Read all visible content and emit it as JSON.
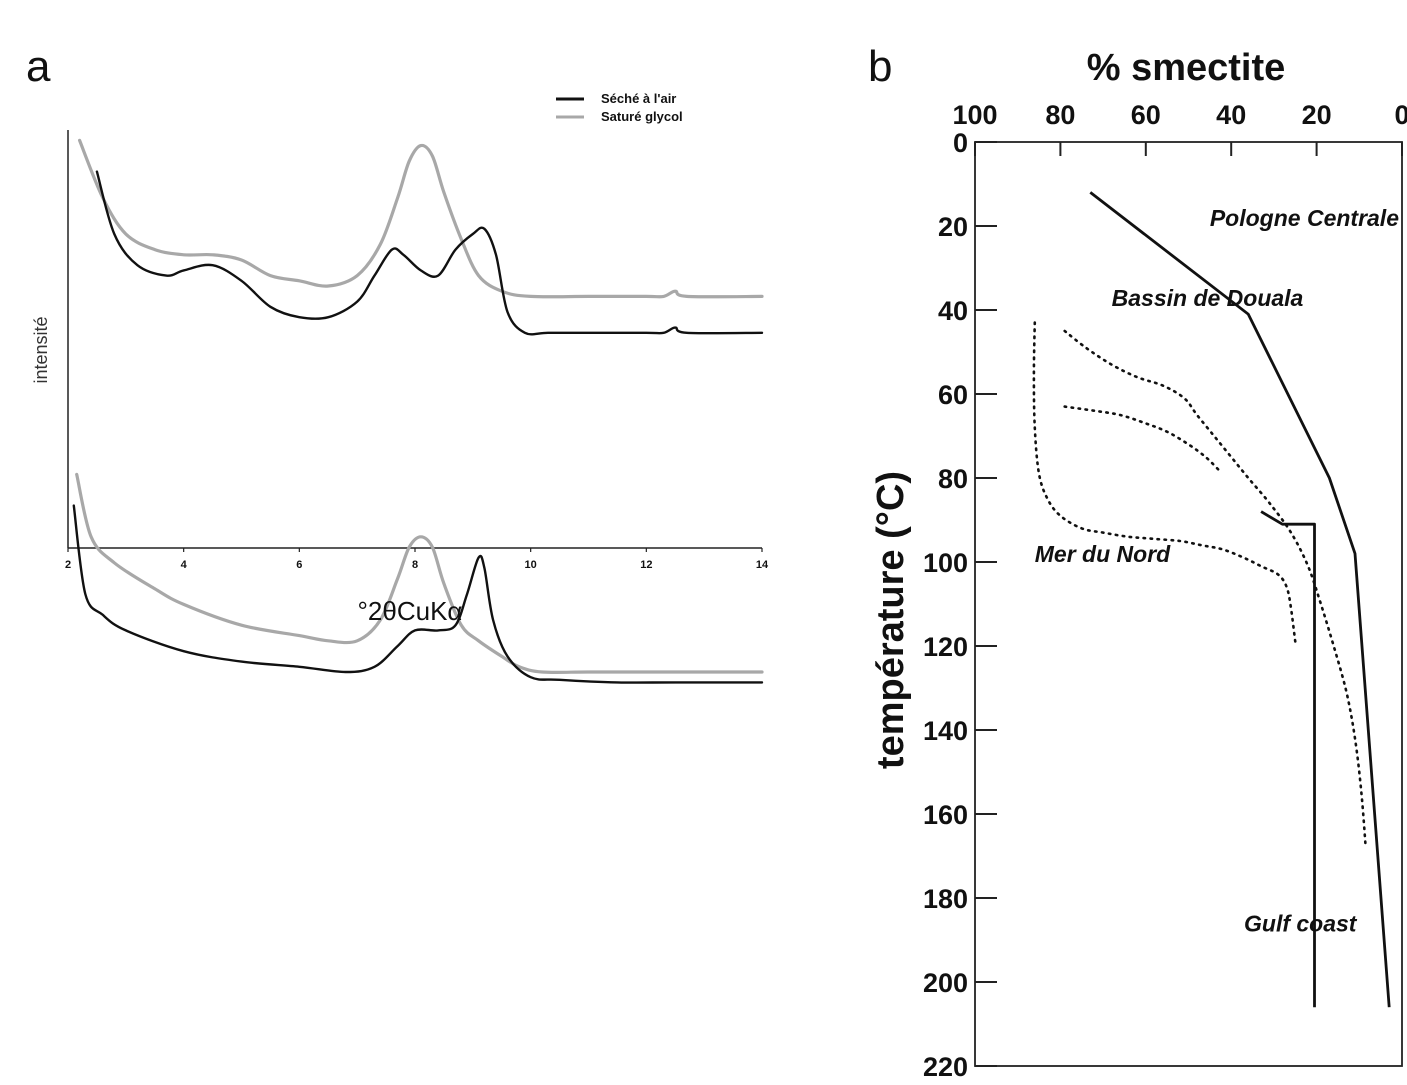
{
  "chart_data": [
    {
      "panel": "a",
      "type": "line",
      "xlabel": "°2θCuKα",
      "ylabel": "intensité",
      "xlim": [
        2,
        14
      ],
      "xticks": [
        2,
        4,
        6,
        8,
        10,
        12,
        14
      ],
      "legend": {
        "placement": "top-right",
        "entries": [
          {
            "label": "Séché à l'air",
            "color": "#111111"
          },
          {
            "label": "Saturé glycol",
            "color": "#a8a8a8"
          }
        ]
      },
      "series": [
        {
          "group": "upper",
          "legend": "Saturé glycol",
          "color": "#a8a8a8",
          "x": [
            2.2,
            2.6,
            3.0,
            3.5,
            4.0,
            4.5,
            5.0,
            5.5,
            6.0,
            6.5,
            7.0,
            7.4,
            7.7,
            7.9,
            8.1,
            8.3,
            8.5,
            8.8,
            9.1,
            9.5,
            10.0,
            11.0,
            12.0,
            12.3,
            12.5,
            12.7,
            14.0
          ],
          "y": [
            0.98,
            0.87,
            0.8,
            0.77,
            0.76,
            0.76,
            0.75,
            0.72,
            0.71,
            0.7,
            0.72,
            0.78,
            0.87,
            0.94,
            0.97,
            0.95,
            0.88,
            0.79,
            0.72,
            0.69,
            0.68,
            0.68,
            0.68,
            0.68,
            0.69,
            0.68,
            0.68
          ]
        },
        {
          "group": "upper",
          "legend": "Séché à l'air",
          "color": "#111111",
          "x": [
            2.5,
            2.8,
            3.2,
            3.7,
            4.0,
            4.5,
            5.0,
            5.5,
            6.0,
            6.5,
            7.0,
            7.3,
            7.6,
            7.8,
            8.1,
            8.4,
            8.7,
            9.0,
            9.2,
            9.4,
            9.6,
            9.9,
            10.3,
            11.0,
            12.0,
            12.3,
            12.5,
            12.7,
            14.0
          ],
          "y": [
            0.92,
            0.8,
            0.74,
            0.72,
            0.73,
            0.74,
            0.71,
            0.66,
            0.64,
            0.64,
            0.67,
            0.72,
            0.77,
            0.76,
            0.73,
            0.72,
            0.77,
            0.8,
            0.81,
            0.76,
            0.65,
            0.61,
            0.61,
            0.61,
            0.61,
            0.61,
            0.62,
            0.61,
            0.61
          ]
        },
        {
          "group": "lower",
          "legend": "Saturé glycol",
          "color": "#a8a8a8",
          "x": [
            2.15,
            2.4,
            2.8,
            3.5,
            4.0,
            5.0,
            6.0,
            6.5,
            7.0,
            7.4,
            7.7,
            7.9,
            8.1,
            8.3,
            8.5,
            8.8,
            9.1,
            9.5,
            9.8,
            10.2,
            11.0,
            12.0,
            14.0
          ],
          "y": [
            0.78,
            0.66,
            0.61,
            0.56,
            0.53,
            0.49,
            0.47,
            0.46,
            0.46,
            0.5,
            0.58,
            0.64,
            0.66,
            0.64,
            0.57,
            0.49,
            0.46,
            0.43,
            0.41,
            0.4,
            0.4,
            0.4,
            0.4
          ]
        },
        {
          "group": "lower",
          "legend": "Séché à l'air",
          "color": "#111111",
          "x": [
            2.1,
            2.3,
            2.6,
            3.0,
            4.0,
            5.0,
            6.0,
            6.8,
            7.3,
            7.7,
            8.0,
            8.4,
            8.7,
            8.9,
            9.1,
            9.2,
            9.35,
            9.6,
            10.0,
            10.5,
            11.5,
            12.5,
            14.0
          ],
          "y": [
            0.72,
            0.55,
            0.51,
            0.48,
            0.44,
            0.42,
            0.41,
            0.4,
            0.41,
            0.45,
            0.48,
            0.48,
            0.49,
            0.55,
            0.62,
            0.6,
            0.5,
            0.43,
            0.39,
            0.385,
            0.38,
            0.38,
            0.38
          ]
        }
      ]
    },
    {
      "panel": "b",
      "type": "line",
      "title": "% smectite",
      "ylabel": "température (°C)",
      "xlim": [
        100,
        0
      ],
      "ylim": [
        0,
        220
      ],
      "xticks": [
        100,
        80,
        60,
        40,
        20,
        0
      ],
      "yticks": [
        0,
        20,
        40,
        60,
        80,
        100,
        120,
        140,
        160,
        180,
        200,
        220
      ],
      "annotations": [
        {
          "text": "Pologne Centrale",
          "x": 45,
          "y": 20
        },
        {
          "text": "Bassin de Douala",
          "x": 68,
          "y": 39
        },
        {
          "text": "Mer du Nord",
          "x": 86,
          "y": 100
        },
        {
          "text": "Gulf coast",
          "x": 37,
          "y": 188
        }
      ],
      "series": [
        {
          "style": "solid",
          "x": [
            73,
            36,
            17,
            11,
            3
          ],
          "y": [
            12,
            41,
            80,
            98,
            206
          ]
        },
        {
          "style": "solid",
          "x": [
            33,
            28,
            22,
            20.5,
            20.5
          ],
          "y": [
            88,
            91,
            91,
            91,
            206
          ]
        },
        {
          "style": "dotted",
          "x": [
            79,
            74,
            68,
            62,
            56,
            51,
            48,
            44,
            40,
            36,
            31,
            26,
            22,
            19,
            16,
            13,
            11,
            9.5,
            8.5
          ],
          "y": [
            45,
            49,
            53,
            56,
            58,
            61,
            65,
            70,
            75,
            80,
            86,
            93,
            101,
            110,
            120,
            131,
            142,
            155,
            168
          ]
        },
        {
          "style": "dotted",
          "x": [
            79,
            72,
            66,
            60,
            55,
            50,
            46,
            43
          ],
          "y": [
            63,
            64,
            65,
            67,
            69,
            72,
            75,
            78
          ]
        },
        {
          "style": "dotted",
          "x": [
            86,
            86.2,
            86,
            85,
            83,
            80,
            75,
            70,
            64,
            58,
            52,
            47,
            42,
            37,
            33,
            29,
            27,
            26,
            25
          ],
          "y": [
            43,
            55,
            68,
            79,
            85,
            89,
            92,
            93,
            94,
            94.5,
            95,
            96,
            97,
            99,
            101,
            103,
            106,
            111,
            119
          ]
        }
      ]
    }
  ]
}
